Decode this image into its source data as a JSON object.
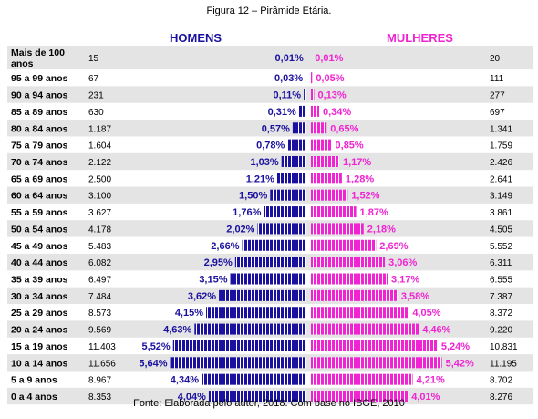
{
  "caption": "Figura 12 – Pirâmide Etária.",
  "source": "Fonte: Elaborada pelo autor, 2018. Com base no IBGE, 2010",
  "colors": {
    "men": "#1a129e",
    "women": "#f024d2",
    "stripe": "#e4e4e4"
  },
  "chart_data": {
    "type": "bar",
    "orientation": "horizontal-pyramid",
    "legend": [
      "HOMENS",
      "MULHERES"
    ],
    "categories": [
      "Mais de 100 anos",
      "95 a 99 anos",
      "90 a 94 anos",
      "85 a 89 anos",
      "80 a 84 anos",
      "75 a 79 anos",
      "70 a 74 anos",
      "65 a 69 anos",
      "60 a 64 anos",
      "55 a 59 anos",
      "50 a 54 anos",
      "45 a 49 anos",
      "40 a 44 anos",
      "35 a 39 anos",
      "30 a 34 anos",
      "25 a 29 anos",
      "20 a 24 anos",
      "15 a 19 anos",
      "10 a 14 anos",
      "5 a 9 anos",
      "0 a 4 anos"
    ],
    "series": [
      {
        "name": "HOMENS",
        "counts": [
          "15",
          "67",
          "231",
          "630",
          "1.187",
          "1.604",
          "2.122",
          "2.500",
          "3.100",
          "3.627",
          "4.178",
          "5.483",
          "6.082",
          "6.497",
          "7.484",
          "8.573",
          "9.569",
          "11.403",
          "11.656",
          "8.967",
          "8.353"
        ],
        "percent_labels": [
          "0,01%",
          "0,03%",
          "0,11%",
          "0,31%",
          "0,57%",
          "0,78%",
          "1,03%",
          "1,21%",
          "1,50%",
          "1,76%",
          "2,02%",
          "2,66%",
          "2,95%",
          "3,15%",
          "3,62%",
          "4,15%",
          "4,63%",
          "5,52%",
          "5,64%",
          "4,34%",
          "4,04%"
        ],
        "values": [
          0.01,
          0.03,
          0.11,
          0.31,
          0.57,
          0.78,
          1.03,
          1.21,
          1.5,
          1.76,
          2.02,
          2.66,
          2.95,
          3.15,
          3.62,
          4.15,
          4.63,
          5.52,
          5.64,
          4.34,
          4.04
        ]
      },
      {
        "name": "MULHERES",
        "counts": [
          "20",
          "111",
          "277",
          "697",
          "1.341",
          "1.759",
          "2.426",
          "2.641",
          "3.149",
          "3.861",
          "4.505",
          "5.552",
          "6.311",
          "6.555",
          "7.387",
          "8.372",
          "9.220",
          "10.831",
          "11.195",
          "8.702",
          "8.276"
        ],
        "percent_labels": [
          "0,01%",
          "0,05%",
          "0,13%",
          "0,34%",
          "0,65%",
          "0,85%",
          "1,17%",
          "1,28%",
          "1,52%",
          "1,87%",
          "2,18%",
          "2,69%",
          "3,06%",
          "3,17%",
          "3,58%",
          "4,05%",
          "4,46%",
          "5,24%",
          "5,42%",
          "4,21%",
          "4,01%"
        ],
        "values": [
          0.01,
          0.05,
          0.13,
          0.34,
          0.65,
          0.85,
          1.17,
          1.28,
          1.52,
          1.87,
          2.18,
          2.69,
          3.06,
          3.17,
          3.58,
          4.05,
          4.46,
          5.24,
          5.42,
          4.21,
          4.01
        ]
      }
    ]
  }
}
